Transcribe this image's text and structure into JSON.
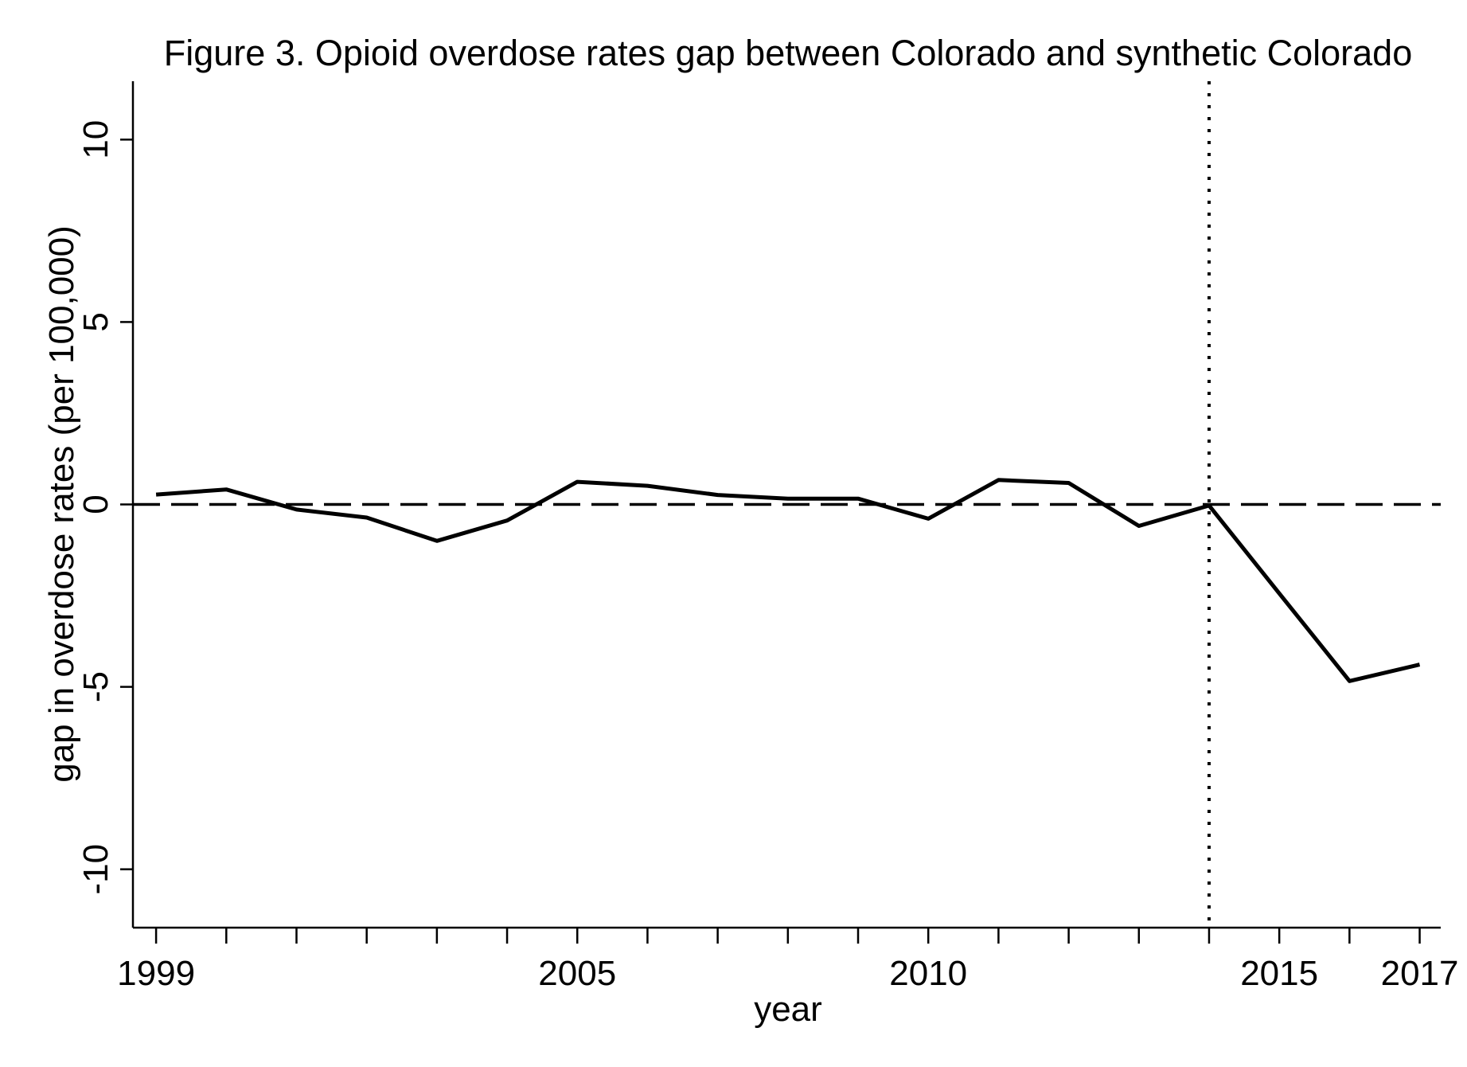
{
  "chart_data": {
    "type": "line",
    "title": "Figure 3. Opioid overdose rates gap between Colorado and synthetic Colorado",
    "xlabel": "year",
    "ylabel": "gap in overdose rates (per 100,000)",
    "x": [
      1999,
      2000,
      2001,
      2002,
      2003,
      2004,
      2005,
      2006,
      2007,
      2008,
      2009,
      2010,
      2011,
      2012,
      2013,
      2014,
      2015,
      2016,
      2017
    ],
    "series": [
      {
        "values": [
          0.27,
          0.41,
          -0.14,
          -0.36,
          -1.0,
          -0.44,
          0.62,
          0.51,
          0.26,
          0.16,
          0.16,
          -0.39,
          0.67,
          0.59,
          -0.59,
          -0.03,
          -2.44,
          -4.84,
          -4.39
        ]
      }
    ],
    "xlim": [
      1998.67,
      2017.3
    ],
    "ylim": [
      -11.6,
      11.6
    ],
    "x_ticks": [
      1999,
      2000,
      2001,
      2002,
      2003,
      2004,
      2005,
      2006,
      2007,
      2008,
      2009,
      2010,
      2011,
      2012,
      2013,
      2014,
      2015,
      2016,
      2017
    ],
    "x_tick_labels": [
      "1999",
      "2005",
      "2010",
      "2015",
      "2017"
    ],
    "y_ticks": [
      -10,
      -5,
      0,
      5,
      10
    ],
    "y_tick_labels": [
      "-10",
      "-5",
      "0",
      "5",
      "10"
    ],
    "reference_lines": [
      {
        "orientation": "horizontal",
        "value": 0,
        "style": "dashed"
      },
      {
        "orientation": "vertical",
        "value": 2014,
        "style": "dotted"
      }
    ],
    "grid": false,
    "legend": "none",
    "colors": {
      "line": "#000000",
      "axis": "#000000",
      "background": "#ffffff"
    }
  }
}
